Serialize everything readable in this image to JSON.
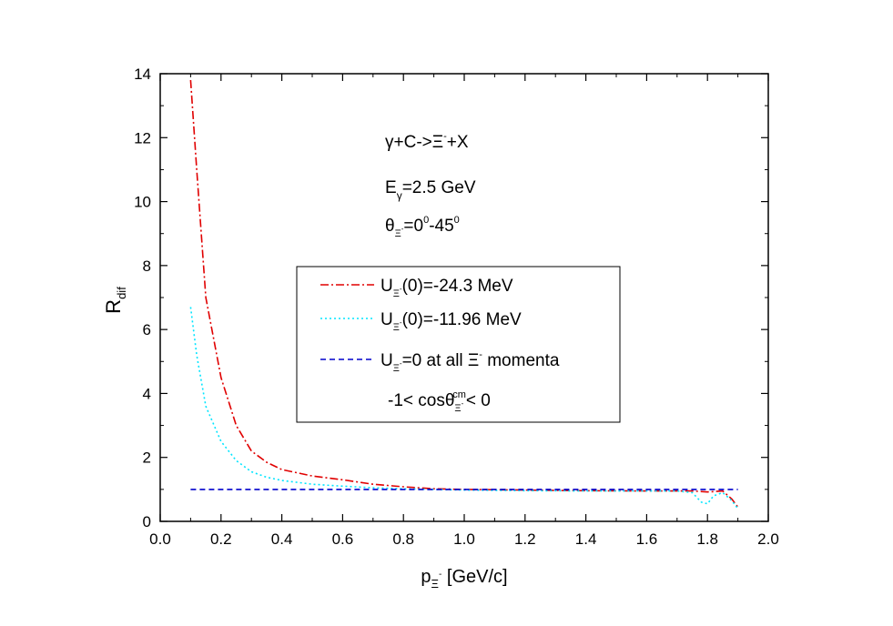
{
  "chart_data": {
    "type": "line",
    "xlabel": {
      "main": "p",
      "sub": "Ξ",
      "sup": "-",
      "rest": " [GeV/c]"
    },
    "ylabel": {
      "main": "R",
      "sub": "dif"
    },
    "xlim": [
      0.0,
      2.0
    ],
    "ylim": [
      0,
      14
    ],
    "xticks": [
      "0.0",
      "0.2",
      "0.4",
      "0.6",
      "0.8",
      "1.0",
      "1.2",
      "1.4",
      "1.6",
      "1.8",
      "2.0"
    ],
    "yticks": [
      "0",
      "2",
      "4",
      "6",
      "8",
      "10",
      "12",
      "14"
    ],
    "grid": false,
    "annotations": {
      "reaction": {
        "a": "γ+C->Ξ",
        "sup": "-",
        "b": "+X"
      },
      "energy": {
        "a": "E",
        "sub": "γ",
        "b": "=2.5 GeV"
      },
      "angle": {
        "a": "θ",
        "sub": "Ξ",
        "subsup": "-",
        "b": "=0",
        "sup1": "0",
        "c": "-45",
        "sup2": "0"
      }
    },
    "legend": {
      "placement": "center",
      "entries": [
        {
          "a": "U",
          "sub": "Ξ",
          "subsup": "-",
          "b": "(0)=-24.3 MeV"
        },
        {
          "a": "U",
          "sub": "Ξ",
          "subsup": "-",
          "b": "(0)=-11.96 MeV"
        },
        {
          "a": "U",
          "sub": "Ξ",
          "subsup": "-",
          "b": "=0 at all Ξ",
          "sup": "-",
          "c": " momenta"
        }
      ],
      "note": {
        "a": "-1< cosθ",
        "sub": "Ξ",
        "subsup": "-",
        "sup": "cm",
        "b": "< 0"
      }
    },
    "series": [
      {
        "color": "#e00000",
        "dash": "9,3,2,3",
        "x": [
          0.1,
          0.12,
          0.15,
          0.2,
          0.25,
          0.3,
          0.35,
          0.4,
          0.5,
          0.6,
          0.7,
          0.8,
          0.9,
          1.0,
          1.2,
          1.4,
          1.6,
          1.7,
          1.75,
          1.8,
          1.85,
          1.88,
          1.9
        ],
        "y": [
          13.8,
          11.0,
          7.0,
          4.5,
          3.0,
          2.2,
          1.85,
          1.62,
          1.42,
          1.3,
          1.16,
          1.08,
          1.02,
          1.0,
          0.98,
          0.96,
          0.95,
          0.95,
          0.95,
          0.92,
          0.95,
          0.7,
          0.45
        ]
      },
      {
        "color": "#00e5ff",
        "dash": "2,3",
        "x": [
          0.1,
          0.12,
          0.15,
          0.2,
          0.25,
          0.3,
          0.35,
          0.4,
          0.5,
          0.6,
          0.7,
          0.8,
          0.9,
          1.0,
          1.2,
          1.4,
          1.6,
          1.7,
          1.75,
          1.78,
          1.8,
          1.82,
          1.85,
          1.88,
          1.9
        ],
        "y": [
          6.7,
          5.2,
          3.6,
          2.5,
          1.9,
          1.55,
          1.38,
          1.28,
          1.16,
          1.1,
          1.05,
          1.02,
          1.0,
          0.98,
          0.96,
          0.95,
          0.95,
          0.95,
          0.9,
          0.6,
          0.55,
          0.8,
          0.9,
          0.65,
          0.4
        ]
      },
      {
        "color": "#0000cc",
        "dash": "6,4",
        "x": [
          0.1,
          1.9
        ],
        "y": [
          1.0,
          1.0
        ]
      }
    ]
  }
}
